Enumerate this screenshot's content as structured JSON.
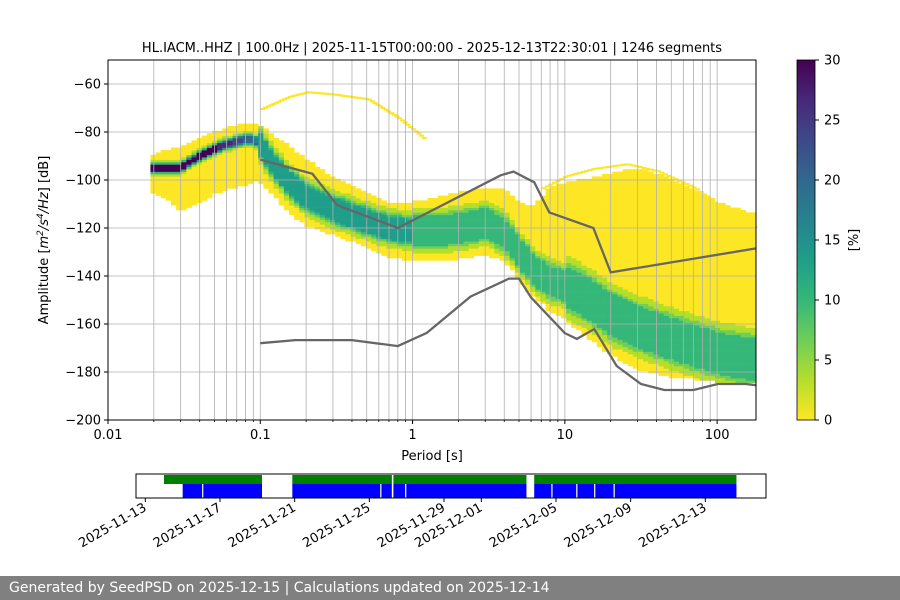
{
  "chart_data": {
    "type": "heatmap",
    "title": "HL.IACM..HHZ | 100.0Hz | 2025-11-15T00:00:00 - 2025-12-13T22:30:01 | 1246 segments",
    "xlabel": "Period [s]",
    "ylabel_parts": [
      "Amplitude [",
      "m",
      "2",
      "/s",
      "4",
      "/Hz",
      "] [dB]"
    ],
    "xscale": "log",
    "xlim": [
      0.01,
      180
    ],
    "ylim": [
      -200,
      -50
    ],
    "x_ticks": [
      {
        "v": 0.01,
        "label": "0.01"
      },
      {
        "v": 0.1,
        "label": "0.1"
      },
      {
        "v": 1,
        "label": "1"
      },
      {
        "v": 10,
        "label": "10"
      },
      {
        "v": 100,
        "label": "100"
      }
    ],
    "y_ticks": [
      {
        "v": -60,
        "label": "−60"
      },
      {
        "v": -80,
        "label": "−80"
      },
      {
        "v": -100,
        "label": "−100"
      },
      {
        "v": -120,
        "label": "−120"
      },
      {
        "v": -140,
        "label": "−140"
      },
      {
        "v": -160,
        "label": "−160"
      },
      {
        "v": -180,
        "label": "−180"
      },
      {
        "v": -200,
        "label": "−200"
      }
    ],
    "colorbar": {
      "label": "[%]",
      "range": [
        0,
        30
      ],
      "ticks": [
        {
          "v": 0,
          "label": "0"
        },
        {
          "v": 5,
          "label": "5"
        },
        {
          "v": 10,
          "label": "10"
        },
        {
          "v": 15,
          "label": "15"
        },
        {
          "v": 20,
          "label": "20"
        },
        {
          "v": 25,
          "label": "25"
        },
        {
          "v": 30,
          "label": "30"
        }
      ],
      "colors": [
        "#fde725",
        "#b5de2b",
        "#6ece58",
        "#35b779",
        "#1f9e89",
        "#26828e",
        "#31688e",
        "#3e4989",
        "#482878",
        "#440154"
      ]
    },
    "psd_median": {
      "x": [
        0.02,
        0.025,
        0.03,
        0.035,
        0.04,
        0.05,
        0.06,
        0.07,
        0.08,
        0.09,
        0.1,
        0.12,
        0.15,
        0.2,
        0.3,
        0.5,
        0.7,
        1,
        1.5,
        2,
        3,
        4,
        5,
        6,
        7,
        8,
        10,
        15,
        20,
        30,
        50,
        100,
        180
      ],
      "y": [
        -95,
        -95,
        -95,
        -92,
        -90,
        -87,
        -85,
        -84,
        -83,
        -83,
        -85,
        -93,
        -100,
        -107,
        -112,
        -117,
        -120,
        -121,
        -121,
        -120,
        -118,
        -122,
        -130,
        -136,
        -140,
        -142,
        -144,
        -150,
        -156,
        -161,
        -166,
        -172,
        -175
      ],
      "spread_lo": [
        -105,
        -108,
        -112,
        -110,
        -108,
        -105,
        -103,
        -102,
        -101,
        -100,
        -100,
        -105,
        -112,
        -118,
        -122,
        -127,
        -131,
        -133,
        -133,
        -132,
        -130,
        -133,
        -140,
        -147,
        -150,
        -154,
        -157,
        -166,
        -172,
        -178,
        -181,
        -183,
        -184
      ],
      "spread_hi": [
        -90,
        -88,
        -87,
        -85,
        -83,
        -81,
        -79,
        -78,
        -77,
        -77,
        -78,
        -82,
        -86,
        -92,
        -100,
        -106,
        -110,
        -110,
        -108,
        -106,
        -104,
        -105,
        -110,
        -112,
        -108,
        -104,
        -102,
        -100,
        -98,
        -96,
        -100,
        -110,
        -115
      ],
      "rare_hi": {
        "x": [
          0.1,
          0.15,
          0.2,
          0.3,
          0.5,
          0.8,
          1.2
        ],
        "y": [
          -70,
          -65,
          -63,
          -64,
          -66,
          -74,
          -83
        ]
      },
      "rare_hi2": {
        "x": [
          7,
          10,
          15,
          25,
          40,
          70,
          120,
          180
        ],
        "y": [
          -103,
          -98,
          -95,
          -93,
          -96,
          -103,
          -114,
          -120
        ]
      }
    },
    "nhnm": {
      "x": [
        0.1,
        0.22,
        0.32,
        0.8,
        3.8,
        4.6,
        6.3,
        7.9,
        15.4,
        20,
        180
      ],
      "y": [
        -91.5,
        -97.4,
        -110.5,
        -120,
        -98,
        -96.5,
        -101,
        -113.5,
        -120,
        -138.5,
        -128.5
      ]
    },
    "nlnm": {
      "x": [
        0.1,
        0.17,
        0.4,
        0.8,
        1.24,
        2.4,
        4.3,
        5,
        6,
        10,
        12,
        15.6,
        21.9,
        31.6,
        45,
        70,
        101,
        154,
        180
      ],
      "y": [
        -168,
        -166.7,
        -166.7,
        -169.2,
        -163.7,
        -148.6,
        -141.1,
        -141.1,
        -149,
        -163.8,
        -166.2,
        -162.1,
        -177.5,
        -185,
        -187.5,
        -187.5,
        -185,
        -185,
        -185.5
      ]
    },
    "availability": {
      "date_range": [
        "2025-11-12T12:00",
        "2025-12-16T06:00"
      ],
      "date_ticks": [
        "2025-11-13",
        "2025-11-17",
        "2025-11-21",
        "2025-11-25",
        "2025-11-29",
        "2025-12-01",
        "2025-12-05",
        "2025-12-09",
        "2025-12-13"
      ],
      "green_segments": [
        [
          "2025-11-14T00:00",
          "2025-11-19T06:00"
        ],
        [
          "2025-11-20T21:00",
          "2025-12-03T10:00"
        ],
        [
          "2025-12-03T20:00",
          "2025-12-14T16:00"
        ]
      ],
      "blue_segments": [
        [
          "2025-11-15T00:00",
          "2025-11-19T06:00"
        ],
        [
          "2025-11-20T21:00",
          "2025-12-03T10:00"
        ],
        [
          "2025-12-03T20:00",
          "2025-12-14T16:00"
        ]
      ],
      "blue_gaps": [
        "2025-11-16T01:00",
        "2025-11-25T14:00",
        "2025-11-26T05:00",
        "2025-11-26T22:00",
        "2025-12-04T18:00",
        "2025-12-06T02:00",
        "2025-12-07T01:00",
        "2025-12-08T02:00"
      ],
      "green_gaps": [
        "2025-11-26T05:00"
      ],
      "colors": {
        "green": "#008000",
        "blue": "#0000ff"
      }
    }
  },
  "footer": {
    "text": "Generated by SeedPSD on 2025-12-15 | Calculations updated on 2025-12-14"
  }
}
